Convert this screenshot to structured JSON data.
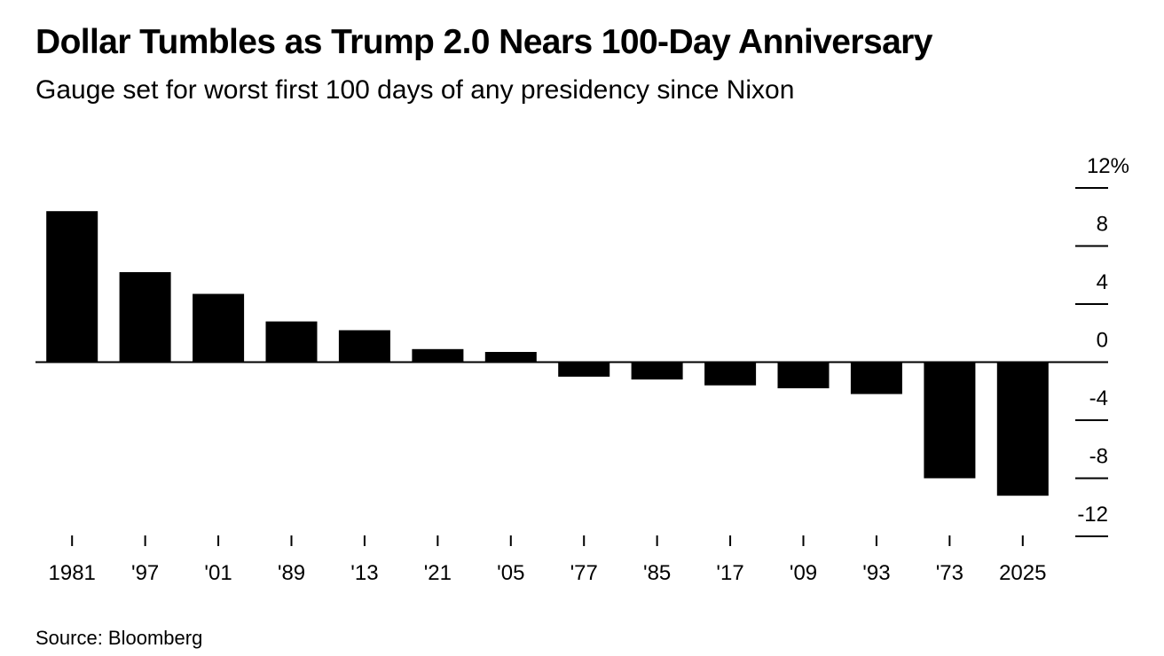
{
  "header": {
    "title": "Dollar Tumbles as Trump 2.0 Nears 100-Day Anniversary",
    "subtitle": "Gauge set for worst first 100 days of any presidency since Nixon"
  },
  "footer": {
    "source": "Source: Bloomberg"
  },
  "colors": {
    "bar": "#000000",
    "background": "#ffffff",
    "text": "#000000"
  },
  "chart_data": {
    "type": "bar",
    "categories": [
      "1981",
      "'97",
      "'01",
      "'89",
      "'13",
      "'21",
      "'05",
      "'77",
      "'85",
      "'17",
      "'09",
      "'93",
      "'73",
      "2025"
    ],
    "values": [
      10.4,
      6.2,
      4.7,
      2.8,
      2.2,
      0.9,
      0.7,
      -1.0,
      -1.2,
      -1.6,
      -1.8,
      -2.2,
      -8.0,
      -9.2
    ],
    "ylim": [
      -12,
      12
    ],
    "y_ticks": [
      12,
      8,
      4,
      0,
      -4,
      -8,
      -12
    ],
    "y_tick_labels": [
      "12%",
      "8",
      "4",
      "0",
      "-4",
      "-8",
      "-12"
    ],
    "y_axis_position": "right",
    "grid": false,
    "legend": "none"
  }
}
